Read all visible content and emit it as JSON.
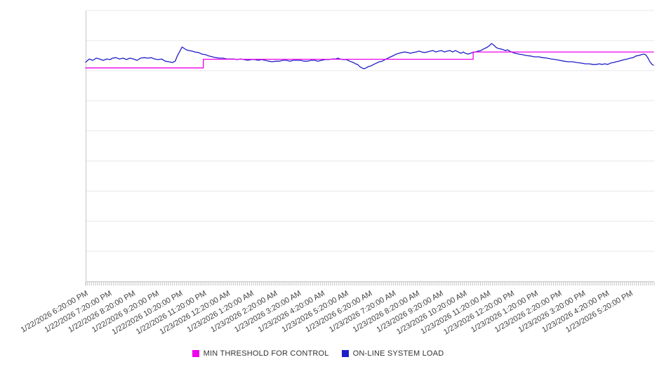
{
  "colors": {
    "background": "#ffffff",
    "gridline": "#e8e8e8",
    "axis": "#c6c6c6",
    "tick": "#c6c6c6",
    "label_text": "#404040",
    "magenta": "#ee00ee",
    "blue": "#1e1ec8"
  },
  "legend": {
    "items": [
      {
        "label": "MIN THRESHOLD FOR CONTROL",
        "color": "#ee00ee"
      },
      {
        "label": "ON-LINE SYSTEM LOAD",
        "color": "#1e1ec8"
      }
    ]
  },
  "chart_data": {
    "type": "line",
    "title": "",
    "xlabel": "",
    "ylabel": "",
    "legend_position": "bottom",
    "grid": "horizontal-only",
    "x_axis": {
      "unit": "time",
      "minor_tick_count": 288,
      "minor_tick_interval": "5 minutes",
      "major_tick_interval": "1 hour",
      "tick_labels": [
        "1/22/2026 6:20:00 PM",
        "1/22/2026 7:20:00 PM",
        "1/22/2026 8:20:00 PM",
        "1/22/2026 9:20:00 PM",
        "1/22/2026 10:20:00 PM",
        "1/22/2026 11:20:00 PM",
        "1/23/2026 12:20:00 AM",
        "1/23/2026 1:20:00 AM",
        "1/23/2026 2:20:00 AM",
        "1/23/2026 3:20:00 AM",
        "1/23/2026 4:20:00 AM",
        "1/23/2026 5:20:00 AM",
        "1/23/2026 6:20:00 AM",
        "1/23/2026 7:20:00 AM",
        "1/23/2026 8:20:00 AM",
        "1/23/2026 9:20:00 AM",
        "1/23/2026 10:20:00 AM",
        "1/23/2026 11:20:00 AM",
        "1/23/2026 12:20:00 PM",
        "1/23/2026 1:20:00 PM",
        "1/23/2026 2:20:00 PM",
        "1/23/2026 3:20:00 PM",
        "1/23/2026 4:20:00 PM",
        "1/23/2026 5:20:00 PM"
      ]
    },
    "y_axis": {
      "labels_visible": false,
      "unit": "unlabeled (values given as % of plot height, 0 = bottom axis, 100 = top gridline)",
      "range": [
        0,
        100
      ],
      "gridline_rows": 9
    },
    "x_range_hours": [
      0,
      24
    ],
    "series": [
      {
        "name": "MIN THRESHOLD FOR CONTROL",
        "color": "#ee00ee",
        "shape": "step",
        "points": [
          [
            0,
            78.8
          ],
          [
            4.97,
            78.8
          ],
          [
            4.97,
            82
          ],
          [
            16.36,
            82
          ],
          [
            16.36,
            84.7
          ],
          [
            23.97,
            84.7
          ]
        ]
      },
      {
        "name": "ON-LINE SYSTEM LOAD",
        "color": "#1e1ec8",
        "shape": "line",
        "points": [
          [
            0,
            80.9
          ],
          [
            0.15,
            82.1
          ],
          [
            0.3,
            81.6
          ],
          [
            0.45,
            82.4
          ],
          [
            0.59,
            82.1
          ],
          [
            0.74,
            81.6
          ],
          [
            0.89,
            82.1
          ],
          [
            1.04,
            81.9
          ],
          [
            1.13,
            82.4
          ],
          [
            1.28,
            82.6
          ],
          [
            1.43,
            82.1
          ],
          [
            1.58,
            82.4
          ],
          [
            1.72,
            81.9
          ],
          [
            1.87,
            82.4
          ],
          [
            2.02,
            82.1
          ],
          [
            2.17,
            81.6
          ],
          [
            2.32,
            82.4
          ],
          [
            2.47,
            82.6
          ],
          [
            2.62,
            82.4
          ],
          [
            2.77,
            82.6
          ],
          [
            2.91,
            82.1
          ],
          [
            3.06,
            81.9
          ],
          [
            3.21,
            82.1
          ],
          [
            3.36,
            81.3
          ],
          [
            3.51,
            81.1
          ],
          [
            3.66,
            80.8
          ],
          [
            3.78,
            81.3
          ],
          [
            3.87,
            83.2
          ],
          [
            3.96,
            84.7
          ],
          [
            4.07,
            86.5
          ],
          [
            4.16,
            86
          ],
          [
            4.25,
            85.5
          ],
          [
            4.37,
            85.2
          ],
          [
            4.49,
            85
          ],
          [
            4.61,
            84.7
          ],
          [
            4.76,
            84.5
          ],
          [
            4.91,
            83.9
          ],
          [
            5.06,
            83.7
          ],
          [
            5.2,
            83.2
          ],
          [
            5.35,
            82.9
          ],
          [
            5.5,
            82.6
          ],
          [
            5.65,
            82.4
          ],
          [
            5.8,
            82.4
          ],
          [
            5.95,
            82.1
          ],
          [
            6.1,
            82.1
          ],
          [
            6.25,
            82.1
          ],
          [
            6.39,
            81.9
          ],
          [
            6.54,
            82.1
          ],
          [
            6.69,
            81.9
          ],
          [
            6.84,
            81.6
          ],
          [
            6.99,
            81.9
          ],
          [
            7.14,
            81.9
          ],
          [
            7.29,
            81.6
          ],
          [
            7.43,
            81.9
          ],
          [
            7.58,
            81.6
          ],
          [
            7.73,
            81.3
          ],
          [
            7.88,
            81.1
          ],
          [
            8.03,
            81.3
          ],
          [
            8.18,
            81.3
          ],
          [
            8.33,
            81.6
          ],
          [
            8.48,
            81.6
          ],
          [
            8.62,
            81.3
          ],
          [
            8.77,
            81.6
          ],
          [
            8.92,
            81.6
          ],
          [
            9.07,
            81.6
          ],
          [
            9.22,
            81.3
          ],
          [
            9.37,
            81.3
          ],
          [
            9.52,
            81.6
          ],
          [
            9.67,
            81.6
          ],
          [
            9.81,
            81.3
          ],
          [
            9.96,
            81.6
          ],
          [
            10.11,
            81.9
          ],
          [
            10.26,
            81.9
          ],
          [
            10.41,
            82.1
          ],
          [
            10.56,
            82.1
          ],
          [
            10.65,
            82.4
          ],
          [
            10.74,
            82.1
          ],
          [
            10.86,
            81.9
          ],
          [
            11,
            81.9
          ],
          [
            11.15,
            81.3
          ],
          [
            11.3,
            80.8
          ],
          [
            11.39,
            80.3
          ],
          [
            11.48,
            80.1
          ],
          [
            11.57,
            79.3
          ],
          [
            11.66,
            78.8
          ],
          [
            11.75,
            78.5
          ],
          [
            11.84,
            78.8
          ],
          [
            11.93,
            79.3
          ],
          [
            12.04,
            79.5
          ],
          [
            12.16,
            80.1
          ],
          [
            12.28,
            80.6
          ],
          [
            12.4,
            81.1
          ],
          [
            12.52,
            81.3
          ],
          [
            12.64,
            81.9
          ],
          [
            12.76,
            82.4
          ],
          [
            12.88,
            82.9
          ],
          [
            13,
            83.4
          ],
          [
            13.11,
            83.9
          ],
          [
            13.23,
            84.2
          ],
          [
            13.35,
            84.5
          ],
          [
            13.47,
            84.7
          ],
          [
            13.59,
            84.5
          ],
          [
            13.71,
            84.2
          ],
          [
            13.83,
            84.5
          ],
          [
            13.95,
            84.7
          ],
          [
            14.07,
            85
          ],
          [
            14.19,
            84.7
          ],
          [
            14.3,
            84.5
          ],
          [
            14.42,
            84.7
          ],
          [
            14.54,
            85
          ],
          [
            14.66,
            85.2
          ],
          [
            14.78,
            84.7
          ],
          [
            14.9,
            85
          ],
          [
            15.02,
            85.2
          ],
          [
            15.14,
            84.7
          ],
          [
            15.26,
            85
          ],
          [
            15.38,
            85.2
          ],
          [
            15.49,
            84.7
          ],
          [
            15.61,
            85.2
          ],
          [
            15.73,
            84.7
          ],
          [
            15.85,
            84.2
          ],
          [
            15.94,
            84.7
          ],
          [
            16.03,
            84.2
          ],
          [
            16.15,
            83.9
          ],
          [
            16.24,
            84.2
          ],
          [
            16.33,
            84.5
          ],
          [
            16.45,
            84.7
          ],
          [
            16.57,
            85
          ],
          [
            16.68,
            85.2
          ],
          [
            16.8,
            85.8
          ],
          [
            16.92,
            86.3
          ],
          [
            17.04,
            87
          ],
          [
            17.13,
            87.8
          ],
          [
            17.22,
            87.3
          ],
          [
            17.31,
            86.5
          ],
          [
            17.4,
            86
          ],
          [
            17.52,
            85.8
          ],
          [
            17.64,
            85.5
          ],
          [
            17.73,
            85.2
          ],
          [
            17.81,
            85.5
          ],
          [
            17.9,
            85
          ],
          [
            18.02,
            84.5
          ],
          [
            18.14,
            84.2
          ],
          [
            18.29,
            83.9
          ],
          [
            18.44,
            83.7
          ],
          [
            18.59,
            83.4
          ],
          [
            18.77,
            83.2
          ],
          [
            18.94,
            82.9
          ],
          [
            19.12,
            82.9
          ],
          [
            19.3,
            82.6
          ],
          [
            19.48,
            82.4
          ],
          [
            19.66,
            82.1
          ],
          [
            19.84,
            81.9
          ],
          [
            20.01,
            81.6
          ],
          [
            20.19,
            81.3
          ],
          [
            20.37,
            81.1
          ],
          [
            20.55,
            81.1
          ],
          [
            20.73,
            80.8
          ],
          [
            20.91,
            80.6
          ],
          [
            21.09,
            80.3
          ],
          [
            21.26,
            80.3
          ],
          [
            21.41,
            80.1
          ],
          [
            21.56,
            80.1
          ],
          [
            21.68,
            80.3
          ],
          [
            21.8,
            80.1
          ],
          [
            21.92,
            80.3
          ],
          [
            22.04,
            80.1
          ],
          [
            22.16,
            80.6
          ],
          [
            22.28,
            80.8
          ],
          [
            22.39,
            81.1
          ],
          [
            22.51,
            81.3
          ],
          [
            22.63,
            81.6
          ],
          [
            22.75,
            81.9
          ],
          [
            22.87,
            82.1
          ],
          [
            22.99,
            82.4
          ],
          [
            23.11,
            82.6
          ],
          [
            23.23,
            83.2
          ],
          [
            23.35,
            83.4
          ],
          [
            23.46,
            83.7
          ],
          [
            23.55,
            83.9
          ],
          [
            23.64,
            83.7
          ],
          [
            23.73,
            82.6
          ],
          [
            23.82,
            81.1
          ],
          [
            23.91,
            80.1
          ],
          [
            23.97,
            79.8
          ]
        ]
      }
    ]
  }
}
